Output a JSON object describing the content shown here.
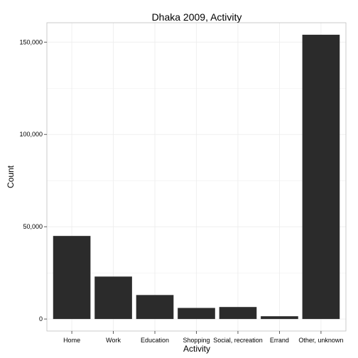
{
  "chart_data": {
    "type": "bar",
    "title": "Dhaka 2009, Activity",
    "xlabel": "Activity",
    "ylabel": "Count",
    "categories": [
      "Home",
      "Work",
      "Education",
      "Shopping",
      "Social, recreation",
      "Errand",
      "Other, unknown"
    ],
    "values": [
      45000,
      23000,
      13000,
      6000,
      6500,
      1500,
      154000
    ],
    "ylim": [
      -6500,
      160500
    ],
    "yticks": [
      0,
      50000,
      100000,
      150000
    ],
    "ytick_labels": [
      "0",
      "50,000",
      "100,000",
      "150,000"
    ],
    "grid": true,
    "legend": "none",
    "colors": {
      "bar": "#2b2b2b",
      "grid": "#ececec",
      "frame": "#bfbfbf",
      "background": "#ffffff"
    }
  }
}
